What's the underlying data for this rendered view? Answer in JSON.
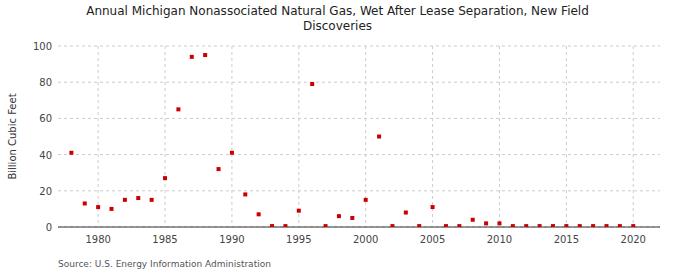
{
  "chart_data": {
    "type": "scatter",
    "title": "Annual Michigan Nonassociated Natural Gas, Wet After Lease Separation, New Field\nDiscoveries",
    "ylabel": "Billion Cubic Feet",
    "source": "Source: U.S. Energy Information Administration",
    "color": "#cc0000",
    "marker": "square",
    "grid": true,
    "xlim": [
      1977,
      2022
    ],
    "ylim": [
      0,
      100
    ],
    "xticks": [
      1980,
      1985,
      1990,
      1995,
      2000,
      2005,
      2010,
      2015,
      2020
    ],
    "yticks": [
      0,
      20,
      40,
      60,
      80,
      100
    ],
    "x": [
      1978,
      1979,
      1980,
      1981,
      1982,
      1983,
      1984,
      1985,
      1986,
      1987,
      1988,
      1989,
      1990,
      1991,
      1992,
      1993,
      1994,
      1995,
      1996,
      1997,
      1998,
      1999,
      2000,
      2001,
      2002,
      2003,
      2004,
      2005,
      2006,
      2007,
      2008,
      2009,
      2010,
      2011,
      2012,
      2013,
      2014,
      2015,
      2016,
      2017,
      2018,
      2019,
      2020
    ],
    "values": [
      41,
      13,
      11,
      10,
      15,
      16,
      15,
      27,
      65,
      94,
      95,
      32,
      41,
      18,
      7,
      0.5,
      0.5,
      9,
      79,
      0.5,
      6,
      5,
      15,
      50,
      0.5,
      8,
      0.5,
      11,
      0.5,
      0.5,
      4,
      2,
      2,
      0.5,
      0.5,
      0.5,
      0.5,
      0.5,
      0.5,
      0.5,
      0.5,
      0.5,
      0.5
    ]
  }
}
